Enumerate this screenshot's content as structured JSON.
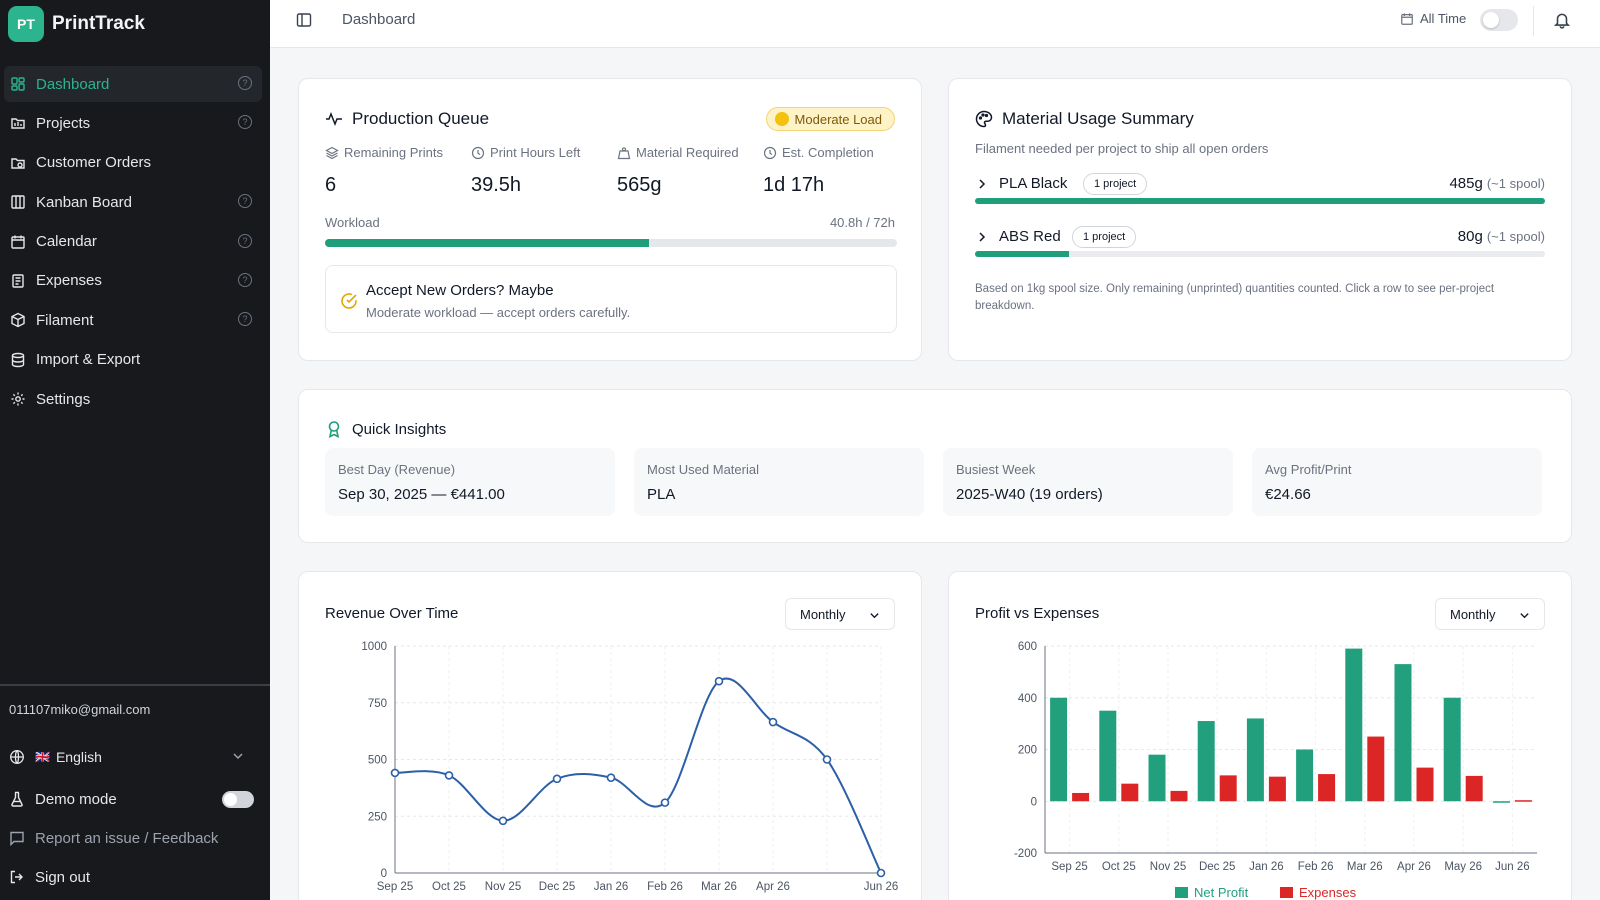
{
  "app": {
    "logo_text": "PT",
    "name": "PrintTrack"
  },
  "sidebar": {
    "items": [
      {
        "label": "Dashboard",
        "icon": "dashboard-icon",
        "active": true,
        "help": true
      },
      {
        "label": "Projects",
        "icon": "folder-icon",
        "active": false,
        "help": true
      },
      {
        "label": "Customer Orders",
        "icon": "orders-icon",
        "active": false,
        "help": false
      },
      {
        "label": "Kanban Board",
        "icon": "kanban-icon",
        "active": false,
        "help": true
      },
      {
        "label": "Calendar",
        "icon": "calendar-icon",
        "active": false,
        "help": true
      },
      {
        "label": "Expenses",
        "icon": "receipt-icon",
        "active": false,
        "help": true
      },
      {
        "label": "Filament",
        "icon": "package-icon",
        "active": false,
        "help": true
      },
      {
        "label": "Import & Export",
        "icon": "database-icon",
        "active": false,
        "help": false
      },
      {
        "label": "Settings",
        "icon": "gear-icon",
        "active": false,
        "help": false
      }
    ],
    "user_email": "011107miko@gmail.com",
    "language": {
      "flag": "🇬🇧",
      "label": "English"
    },
    "demo_mode": {
      "label": "Demo mode",
      "enabled": false
    },
    "feedback": "Report an issue / Feedback",
    "sign_out": "Sign out"
  },
  "topbar": {
    "breadcrumb": "Dashboard",
    "date_filter": "All Time",
    "date_toggle_enabled": false
  },
  "production_queue": {
    "title": "Production Queue",
    "load_badge": "Moderate Load",
    "stats": [
      {
        "label": "Remaining Prints",
        "value": "6",
        "icon": "layers-icon"
      },
      {
        "label": "Print Hours Left",
        "value": "39.5h",
        "icon": "clock-icon"
      },
      {
        "label": "Material Required",
        "value": "565g",
        "icon": "weight-icon"
      },
      {
        "label": "Est. Completion",
        "value": "1d 17h",
        "icon": "clock-icon"
      }
    ],
    "workload_label": "Workload",
    "workload_value": "40.8h / 72h",
    "workload_fraction": 0.567,
    "accept_title": "Accept New Orders? Maybe",
    "accept_subtitle": "Moderate workload — accept orders carefully."
  },
  "material_usage": {
    "title": "Material Usage Summary",
    "subtitle": "Filament needed per project to ship all open orders",
    "rows": [
      {
        "name": "PLA Black",
        "pill": "1 project",
        "amount": "485g",
        "spools": "(~1 spool)",
        "fraction": 1.0
      },
      {
        "name": "ABS Red",
        "pill": "1 project",
        "amount": "80g",
        "spools": "(~1 spool)",
        "fraction": 0.165
      }
    ],
    "note": "Based on 1kg spool size. Only remaining (unprinted) quantities counted. Click a row to see per-project breakdown."
  },
  "quick_insights": {
    "title": "Quick Insights",
    "items": [
      {
        "label": "Best Day (Revenue)",
        "value": "Sep 30, 2025 — €441.00"
      },
      {
        "label": "Most Used Material",
        "value": "PLA"
      },
      {
        "label": "Busiest Week",
        "value": "2025-W40 (19 orders)"
      },
      {
        "label": "Avg Profit/Print",
        "value": "€24.66"
      }
    ]
  },
  "revenue_chart": {
    "title": "Revenue Over Time",
    "period": "Monthly",
    "color": "#2c5fa8"
  },
  "profit_chart": {
    "title": "Profit vs Expenses",
    "period": "Monthly",
    "colors": {
      "net_profit": "#22a07e",
      "expenses": "#dc2626"
    }
  },
  "chart_data": [
    {
      "type": "line",
      "title": "Revenue Over Time",
      "x": [
        "Sep 25",
        "Oct 25",
        "Nov 25",
        "Dec 25",
        "Jan 26",
        "Feb 26",
        "Mar 26",
        "Apr 26",
        "May 26",
        "Jun 26"
      ],
      "xticks": [
        "Sep 25",
        "Oct 25",
        "Nov 25",
        "Dec 25",
        "Jan 26",
        "Feb 26",
        "Mar 26",
        "Apr 26",
        "Jun 26"
      ],
      "yticks": [
        0,
        250,
        500,
        750,
        1000
      ],
      "ylim": [
        0,
        1000
      ],
      "series": [
        {
          "values": [
            441,
            430,
            230,
            415,
            420,
            310,
            845,
            665,
            500,
            0
          ]
        }
      ],
      "grid": true
    },
    {
      "type": "bar",
      "title": "Profit vs Expenses",
      "categories": [
        "Sep 25",
        "Oct 25",
        "Nov 25",
        "Dec 25",
        "Jan 26",
        "Feb 26",
        "Mar 26",
        "Apr 26",
        "May 26",
        "Jun 26"
      ],
      "yticks": [
        -200,
        0,
        200,
        400,
        600
      ],
      "ylim": [
        -200,
        600
      ],
      "series": [
        {
          "name": "Net Profit",
          "values": [
            400,
            350,
            180,
            310,
            320,
            200,
            590,
            530,
            400,
            -3
          ]
        },
        {
          "name": "Expenses",
          "values": [
            32,
            68,
            40,
            100,
            95,
            105,
            250,
            130,
            98,
            4
          ]
        }
      ],
      "legend": "bottom",
      "grid": true
    }
  ]
}
